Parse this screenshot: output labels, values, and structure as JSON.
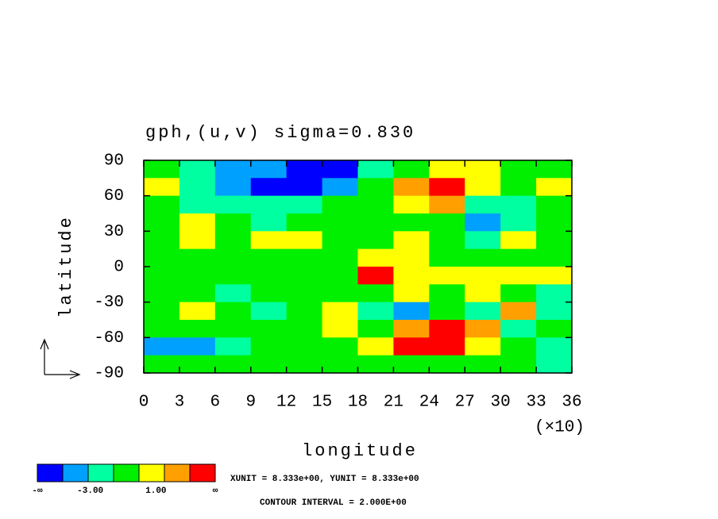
{
  "chart_data": {
    "type": "contour",
    "title": "gph,(u,v) sigma=0.830",
    "xlabel": "longitude",
    "ylabel": "latitude",
    "x_multiplier": "(×10)",
    "xlim": [
      0,
      36
    ],
    "ylim": [
      -90,
      90
    ],
    "xticks": [
      0,
      3,
      6,
      9,
      12,
      15,
      18,
      21,
      24,
      27,
      30,
      33,
      36
    ],
    "yticks": [
      -90,
      -60,
      -30,
      0,
      30,
      60,
      90
    ],
    "x": [
      1.5,
      4.5,
      7.5,
      10.5,
      13.5,
      16.5,
      19.5,
      22.5,
      25.5,
      28.5,
      31.5,
      34.5
    ],
    "y": [
      82.5,
      67.5,
      52.5,
      37.5,
      22.5,
      7.5,
      -7.5,
      -22.5,
      -37.5,
      -52.5,
      -67.5,
      -82.5
    ],
    "z": [
      [
        0,
        -2,
        -4,
        -4,
        -6,
        -6,
        -2,
        0,
        2,
        2,
        0,
        0
      ],
      [
        2,
        -2,
        -4,
        -6,
        -6,
        -4,
        0,
        4,
        6,
        2,
        0,
        2
      ],
      [
        0,
        -2,
        -2,
        -2,
        -2,
        0,
        0,
        2,
        4,
        -2,
        -2,
        0
      ],
      [
        0,
        2,
        0,
        -2,
        0,
        0,
        0,
        0,
        0,
        -4,
        -2,
        0
      ],
      [
        0,
        2,
        0,
        2,
        2,
        0,
        0,
        2,
        0,
        -2,
        2,
        0
      ],
      [
        0,
        0,
        0,
        0,
        0,
        0,
        2,
        2,
        0,
        0,
        0,
        0
      ],
      [
        0,
        0,
        0,
        0,
        0,
        0,
        6,
        2,
        2,
        2,
        2,
        2
      ],
      [
        0,
        0,
        -2,
        0,
        0,
        0,
        0,
        2,
        0,
        2,
        0,
        -2
      ],
      [
        0,
        2,
        0,
        -2,
        0,
        2,
        -2,
        -4,
        0,
        -2,
        4,
        -2
      ],
      [
        0,
        0,
        0,
        0,
        0,
        2,
        0,
        4,
        6,
        4,
        -2,
        0
      ],
      [
        -4,
        -4,
        -2,
        0,
        0,
        0,
        2,
        6,
        6,
        2,
        0,
        -2
      ],
      [
        0,
        0,
        0,
        0,
        0,
        0,
        0,
        0,
        0,
        0,
        0,
        -2
      ]
    ],
    "levels": [
      -5,
      -3,
      -1,
      1,
      3,
      5
    ],
    "colors": [
      "#0000ff",
      "#00a0ff",
      "#00ffa0",
      "#00f000",
      "#ffff00",
      "#ffa000",
      "#ff0000"
    ],
    "colorbar_labels": [
      "-∞",
      "-3.00",
      "1.00",
      "∞"
    ],
    "notes": [
      "XUNIT = 8.333e+00, YUNIT = 8.333e+00",
      "CONTOUR INTERVAL = 2.000E+00"
    ]
  }
}
